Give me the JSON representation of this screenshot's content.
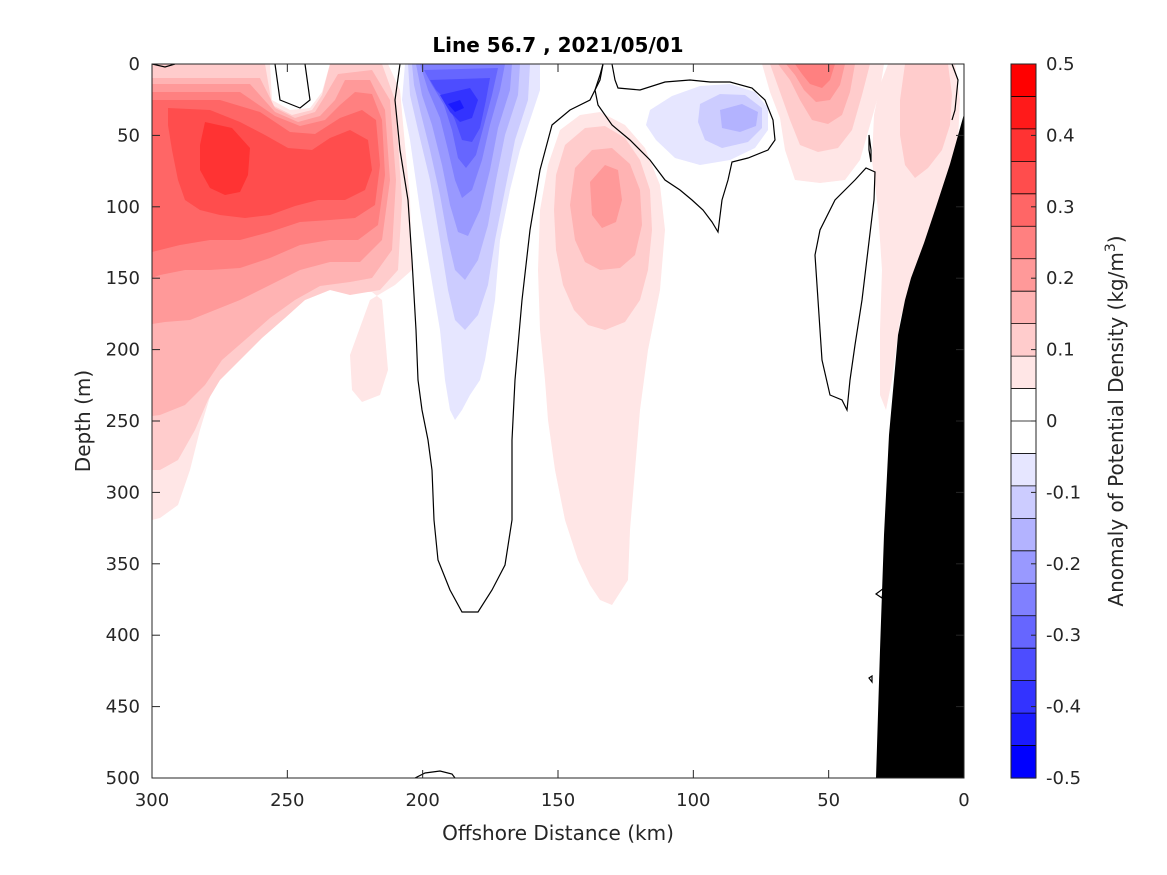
{
  "chart_data": {
    "type": "heatmap",
    "subtype": "filled-contour-section",
    "title": "Line 56.7 , 2021/05/01",
    "xlabel": "Offshore Distance (km)",
    "ylabel": "Depth (m)",
    "xlim": [
      300,
      0
    ],
    "ylim": [
      500,
      0
    ],
    "x_reversed": true,
    "y_reversed": true,
    "xticks": [
      300,
      250,
      200,
      150,
      100,
      50,
      0
    ],
    "yticks": [
      0,
      50,
      100,
      150,
      200,
      250,
      300,
      350,
      400,
      450,
      500
    ],
    "colorbar": {
      "label_main": "Anomaly of Potential Density (kg/m",
      "label_sup": "3",
      "label_end": ")",
      "range": [
        -0.5,
        0.5
      ],
      "step": 0.05,
      "ticks": [
        0.5,
        0.4,
        0.3,
        0.2,
        0.1,
        0,
        -0.1,
        -0.2,
        -0.3,
        -0.4,
        -0.5
      ],
      "tick_labels": [
        "0.5",
        "0.4",
        "0.3",
        "0.2",
        "0.1",
        "0",
        "-0.1",
        "-0.2",
        "-0.3",
        "-0.4",
        "-0.5"
      ],
      "colors_top_to_bottom": [
        "#ff0000",
        "#ff1a1a",
        "#ff3333",
        "#ff4d4d",
        "#ff6666",
        "#ff8080",
        "#ff9999",
        "#ffb3b3",
        "#ffcccc",
        "#ffe6e6",
        "#ffffff",
        "#ffffff",
        "#e6e6ff",
        "#ccccff",
        "#b3b3ff",
        "#9999ff",
        "#8080ff",
        "#6666ff",
        "#4d4dff",
        "#3333ff",
        "#1a1aff",
        "#0000ff"
      ]
    },
    "features": [
      {
        "name": "offshore positive anomaly",
        "x_range_km": [
          300,
          215
        ],
        "depth_range_m": [
          0,
          320
        ],
        "peak_value": 0.35,
        "peak_x_km": 265,
        "peak_depth_m": 65
      },
      {
        "name": "negative anomaly core",
        "x_range_km": [
          210,
          158
        ],
        "depth_range_m": [
          0,
          260
        ],
        "peak_value": -0.45,
        "peak_x_km": 188,
        "peak_depth_m": 30
      },
      {
        "name": "mid-section positive anomaly",
        "x_range_km": [
          158,
          108
        ],
        "depth_range_m": [
          35,
          380
        ],
        "peak_value": 0.2,
        "peak_x_km": 133,
        "peak_depth_m": 90
      },
      {
        "name": "shallow negative anomaly",
        "x_range_km": [
          110,
          70
        ],
        "depth_range_m": [
          15,
          70
        ],
        "peak_value": -0.15,
        "peak_x_km": 85,
        "peak_depth_m": 35
      },
      {
        "name": "nearshore surface positive anomaly",
        "x_range_km": [
          70,
          45
        ],
        "depth_range_m": [
          0,
          80
        ],
        "peak_value": 0.25,
        "peak_x_km": 55,
        "peak_depth_m": 15
      },
      {
        "name": "coastal positive anomaly",
        "x_range_km": [
          35,
          3
        ],
        "depth_range_m": [
          0,
          250
        ],
        "peak_value": 0.1,
        "peak_x_km": 20,
        "peak_depth_m": 50
      }
    ],
    "bathymetry": [
      [
        0,
        35
      ],
      [
        5,
        70
      ],
      [
        10,
        100
      ],
      [
        15,
        125
      ],
      [
        22,
        150
      ],
      [
        25,
        190
      ],
      [
        28,
        260
      ],
      [
        30,
        330
      ],
      [
        32,
        420
      ],
      [
        33,
        500
      ]
    ],
    "zero_contours": true,
    "land_color": "#000000"
  }
}
